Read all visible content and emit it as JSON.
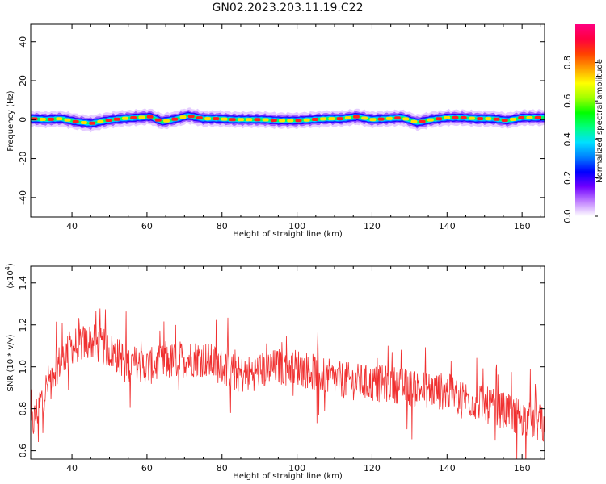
{
  "title": "GN02.2023.203.11.19.C22",
  "chart_data": [
    {
      "type": "heatmap",
      "xlabel": "Height of straight line (km)",
      "ylabel": "Frequency (Hz)",
      "xlim": [
        29,
        166
      ],
      "ylim": [
        -50,
        49
      ],
      "xticks": [
        40,
        60,
        80,
        100,
        120,
        140,
        160
      ],
      "yticks": [
        -40,
        -20,
        0,
        20,
        40
      ],
      "ridge_frequency_hz": [
        [
          29,
          0.5
        ],
        [
          33,
          0
        ],
        [
          37,
          0.5
        ],
        [
          41,
          -1
        ],
        [
          45,
          -2
        ],
        [
          49,
          -0.5
        ],
        [
          53,
          0.5
        ],
        [
          57,
          1
        ],
        [
          61,
          1.5
        ],
        [
          64,
          -1
        ],
        [
          67,
          0
        ],
        [
          71,
          2
        ],
        [
          75,
          0.5
        ],
        [
          79,
          0.5
        ],
        [
          83,
          0
        ],
        [
          87,
          0
        ],
        [
          91,
          0
        ],
        [
          95,
          -0.5
        ],
        [
          100,
          -0.5
        ],
        [
          104,
          0
        ],
        [
          108,
          0.5
        ],
        [
          112,
          0.5
        ],
        [
          116,
          1.5
        ],
        [
          120,
          0
        ],
        [
          124,
          0.5
        ],
        [
          128,
          1
        ],
        [
          132,
          -1.5
        ],
        [
          136,
          0
        ],
        [
          140,
          1
        ],
        [
          144,
          1
        ],
        [
          148,
          0.5
        ],
        [
          152,
          0.5
        ],
        [
          156,
          -0.5
        ],
        [
          160,
          1
        ],
        [
          166,
          1
        ]
      ],
      "colorbar": {
        "label": "Normalized spectral amplitude",
        "range": [
          0,
          1
        ],
        "ticks": [
          "0.0",
          "0.2",
          "0.4",
          "0.6",
          "0.8"
        ],
        "colors": [
          "#ffffff",
          "#c080ff",
          "#7000ff",
          "#0000ff",
          "#0080ff",
          "#00e0ff",
          "#00ff80",
          "#00ff00",
          "#a0ff00",
          "#ffff00",
          "#ffa000",
          "#ff4000",
          "#ff0040",
          "#ff0080"
        ]
      }
    },
    {
      "type": "line",
      "xlabel": "Height of straight line (km)",
      "ylabel": "SNR (10 * v/v)",
      "yscale_label": "(x10",
      "yscale_exp": "4",
      "yscale_close": ")",
      "xlim": [
        29,
        166
      ],
      "ylim": [
        0.56,
        1.48
      ],
      "xticks": [
        40,
        60,
        80,
        100,
        120,
        140,
        160
      ],
      "yticks": [
        "0.6",
        "0.8",
        "1.0",
        "1.2",
        "1.4"
      ],
      "color": "#f03030",
      "envelope": [
        [
          29,
          0.7
        ],
        [
          32,
          0.85
        ],
        [
          35,
          0.98
        ],
        [
          40,
          1.1
        ],
        [
          45,
          1.12
        ],
        [
          50,
          1.08
        ],
        [
          55,
          1.02
        ],
        [
          60,
          1.0
        ],
        [
          65,
          1.02
        ],
        [
          70,
          1.04
        ],
        [
          75,
          1.04
        ],
        [
          80,
          1.0
        ],
        [
          85,
          0.96
        ],
        [
          90,
          0.98
        ],
        [
          95,
          1.0
        ],
        [
          100,
          1.0
        ],
        [
          105,
          0.97
        ],
        [
          110,
          0.94
        ],
        [
          115,
          0.93
        ],
        [
          120,
          0.92
        ],
        [
          125,
          0.92
        ],
        [
          130,
          0.9
        ],
        [
          135,
          0.89
        ],
        [
          140,
          0.88
        ],
        [
          145,
          0.85
        ],
        [
          150,
          0.82
        ],
        [
          155,
          0.79
        ],
        [
          160,
          0.76
        ],
        [
          166,
          0.72
        ]
      ],
      "noise_amplitude": 0.09
    }
  ]
}
